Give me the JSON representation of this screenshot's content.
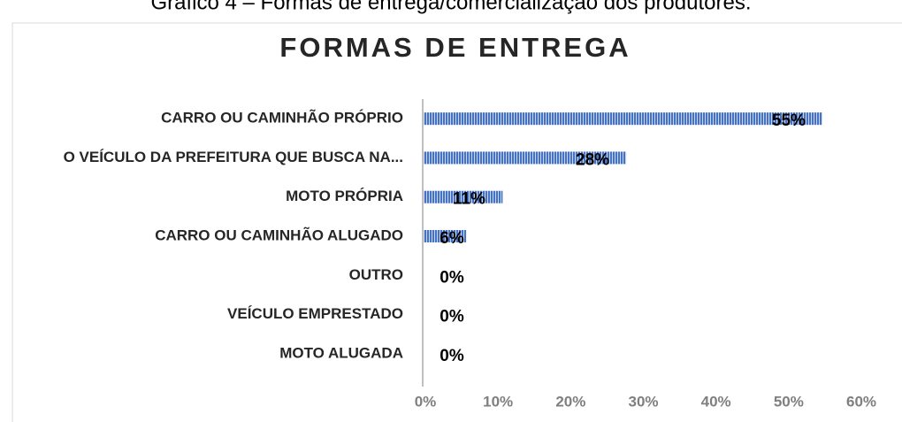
{
  "caption": "Gráfico 4 – Formas de entrega/comercialização dos produtores.",
  "chart_data": {
    "type": "bar",
    "orientation": "horizontal",
    "title": "FORMAS DE ENTREGA",
    "categories": [
      "CARRO OU CAMINHÃO PRÓPRIO",
      "O VEÍCULO DA PREFEITURA QUE BUSCA NA...",
      "MOTO PRÓPRIA",
      "CARRO OU CAMINHÃO ALUGADO",
      "OUTRO",
      "VEÍCULO EMPRESTADO",
      "MOTO ALUGADA"
    ],
    "values": [
      55,
      28,
      11,
      6,
      0,
      0,
      0
    ],
    "value_labels": [
      "55%",
      "28%",
      "11%",
      "6%",
      "0%",
      "0%",
      "0%"
    ],
    "color": "#4472c4",
    "xlim": [
      0,
      60
    ],
    "xticks": [
      {
        "value": 0,
        "label": "0%"
      },
      {
        "value": 10,
        "label": "10%"
      },
      {
        "value": 20,
        "label": "20%"
      },
      {
        "value": 30,
        "label": "30%"
      },
      {
        "value": 40,
        "label": "40%"
      },
      {
        "value": 50,
        "label": "50%"
      },
      {
        "value": 60,
        "label": "60%"
      }
    ]
  }
}
